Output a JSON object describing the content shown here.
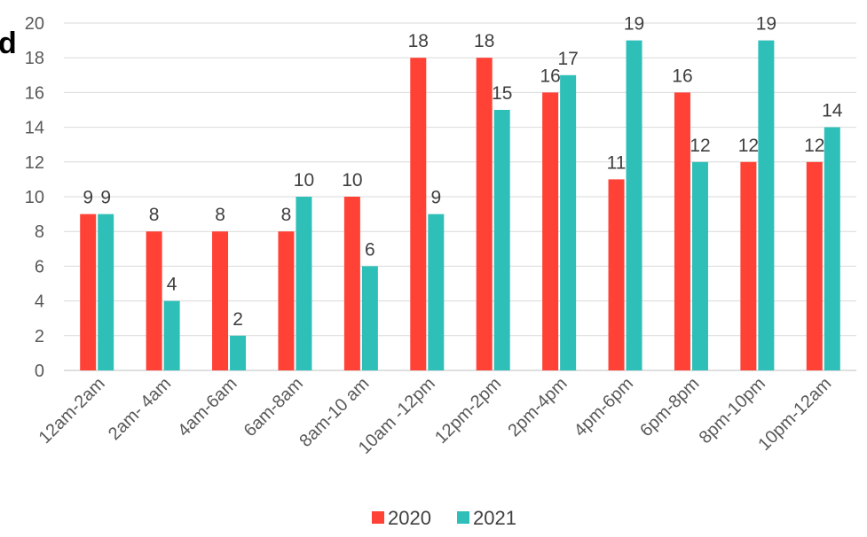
{
  "title_fragment": "d",
  "chart_data": {
    "type": "bar",
    "categories": [
      "12am-2am",
      "2am- 4am",
      "4am-6am",
      "6am-8am",
      "8am-10 am",
      "10am -12pm",
      "12pm-2pm",
      "2pm-4pm",
      "4pm-6pm",
      "6pm-8pm",
      "8pm-10pm",
      "10pm-12am"
    ],
    "series": [
      {
        "name": "2020",
        "color": "#ff4136",
        "values": [
          9,
          8,
          8,
          8,
          10,
          18,
          18,
          16,
          11,
          16,
          12,
          12
        ]
      },
      {
        "name": "2021",
        "color": "#2ebfb8",
        "values": [
          9,
          4,
          2,
          10,
          6,
          9,
          15,
          17,
          19,
          12,
          19,
          14
        ]
      }
    ],
    "ylim": [
      0,
      20
    ],
    "yticks": [
      0,
      2,
      4,
      6,
      8,
      10,
      12,
      14,
      16,
      18,
      20
    ],
    "grid": true,
    "legend_position": "bottom"
  }
}
